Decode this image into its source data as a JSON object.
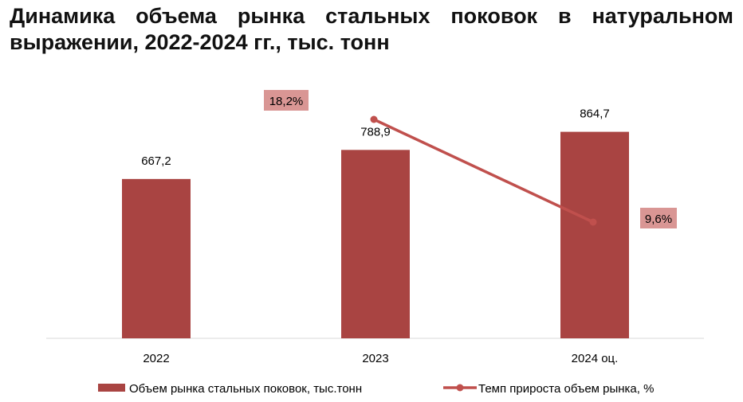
{
  "title": "Динамика объема рынка стальных поковок в натуральном выражении, 2022-2024 гг., тыс. тонн",
  "chart_data": {
    "type": "bar",
    "categories": [
      "2022",
      "2023",
      "2024 оц."
    ],
    "series": [
      {
        "name": "Объем рынка стальных поковок, тыс.тонн",
        "type": "bar",
        "values": [
          667.2,
          788.9,
          864.7
        ],
        "labels": [
          "667,2",
          "788,9",
          "864,7"
        ],
        "color": "#a94442"
      },
      {
        "name": "Темп прироста объем рынка, %",
        "type": "line",
        "values": [
          null,
          18.2,
          9.6
        ],
        "labels": [
          "",
          "18,2%",
          "9,6%"
        ],
        "color": "#c0504d",
        "label_bg": "#d99694"
      }
    ],
    "ylim": [
      0,
      1000
    ],
    "grid": false,
    "legend_position": "bottom"
  }
}
